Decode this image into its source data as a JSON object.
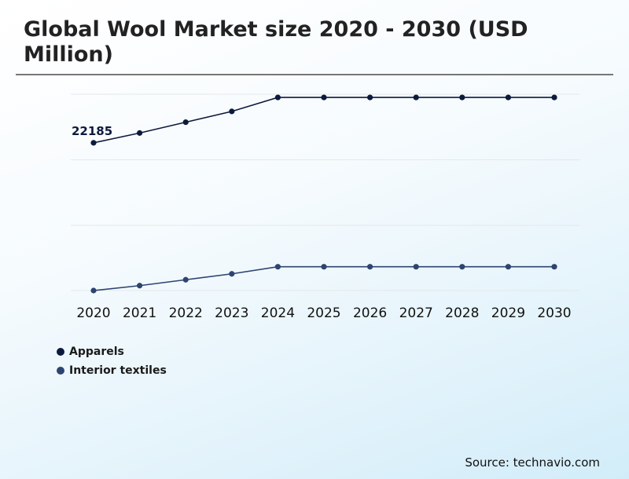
{
  "title": "Global Wool Market size 2020 - 2030 (USD Million)",
  "source": "Source: technavio.com",
  "colors": {
    "apparels": "#0c1a3d",
    "interior_textiles": "#2e4470"
  },
  "chart_data": {
    "type": "line",
    "categories": [
      "2020",
      "2021",
      "2022",
      "2023",
      "2024",
      "2025",
      "2026",
      "2027",
      "2028",
      "2029",
      "2030"
    ],
    "series": [
      {
        "name": "Apparels",
        "color": "#0c1a3d",
        "values": [
          22185,
          22385,
          22605,
          22825,
          23110,
          23110,
          23110,
          23110,
          23110,
          23110,
          23110
        ],
        "label_first": "22185"
      },
      {
        "name": "Interior textiles",
        "color": "#2e4470",
        "values": [
          19175,
          19275,
          19395,
          19515,
          19660,
          19660,
          19660,
          19660,
          19660,
          19660,
          19660
        ]
      }
    ],
    "ylim": [
      19175,
      23175
    ],
    "grid": true,
    "legend": "bottom-left"
  }
}
